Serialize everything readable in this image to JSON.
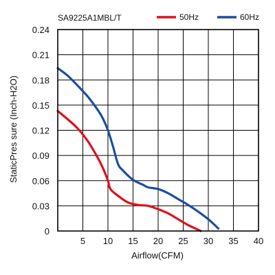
{
  "chart_data": {
    "type": "line",
    "title": "SA9225A1MBL/T",
    "xlabel": "Airflow(CFM)",
    "ylabel": "StaticPres sure (Inch-H2O)",
    "xlim": [
      0,
      40
    ],
    "ylim": [
      0,
      0.24
    ],
    "x_ticks": [
      "5",
      "10",
      "15",
      "20",
      "25",
      "30",
      "35",
      "40"
    ],
    "y_ticks": [
      "0",
      "0.03",
      "0.06",
      "0.09",
      "0.12",
      "0.15",
      "0.18",
      "0.21",
      "0.24"
    ],
    "grid": true,
    "legend_position": "top-right",
    "series": [
      {
        "name": "50Hz",
        "color": "#e0101c",
        "x": [
          0,
          2,
          4,
          6,
          8,
          9,
          10,
          10.5,
          12,
          14,
          16,
          18,
          20,
          22,
          24,
          26,
          28.5
        ],
        "y": [
          0.143,
          0.133,
          0.122,
          0.107,
          0.087,
          0.075,
          0.06,
          0.05,
          0.042,
          0.034,
          0.031,
          0.03,
          0.026,
          0.021,
          0.014,
          0.007,
          0.0
        ]
      },
      {
        "name": "60Hz",
        "color": "#1b4ea0",
        "x": [
          0,
          2,
          4,
          6,
          8,
          9,
          10,
          11,
          12,
          13,
          15,
          17,
          18,
          20,
          22,
          24,
          26,
          28,
          30,
          32
        ],
        "y": [
          0.194,
          0.185,
          0.173,
          0.16,
          0.144,
          0.134,
          0.12,
          0.101,
          0.08,
          0.072,
          0.061,
          0.055,
          0.052,
          0.05,
          0.045,
          0.038,
          0.031,
          0.023,
          0.014,
          0.003
        ]
      }
    ]
  }
}
